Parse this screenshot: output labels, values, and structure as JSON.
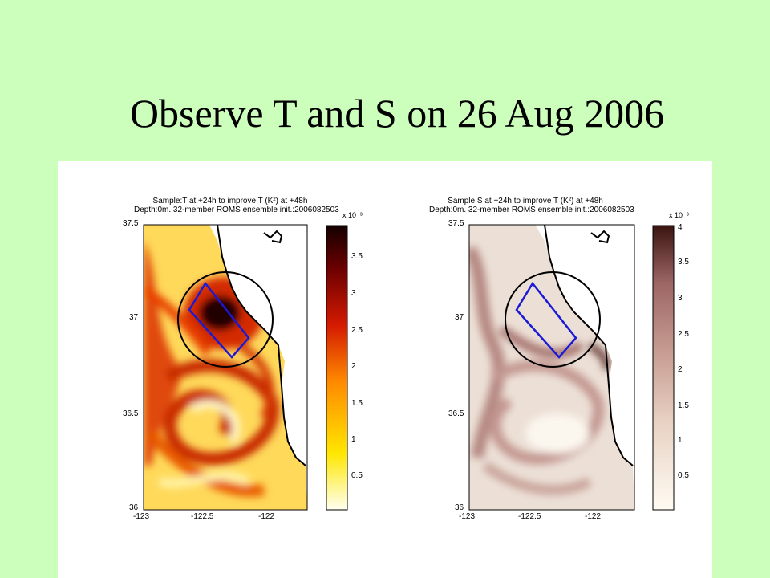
{
  "slide_title": "Observe T and S on 26 Aug 2006",
  "chart_data": [
    {
      "type": "heatmap",
      "title_line1": "Sample:T at +24h to improve T (K²) at +48h",
      "title_line2": "Depth:0m. 32-member ROMS ensemble init.:2006082503",
      "colormap": "hot (white-yellow-red-black)",
      "x_ticks": [
        "-123",
        "-122.5",
        "-122"
      ],
      "y_ticks": [
        "37.5",
        "37",
        "36.5",
        "36"
      ],
      "xlim": [
        -123,
        -121.9
      ],
      "ylim": [
        36,
        37.5
      ],
      "colorbar_ticks": [
        "0.5",
        "1",
        "1.5",
        "2",
        "2.5",
        "3",
        "3.5"
      ],
      "colorbar_range": [
        0,
        3.9
      ],
      "colorbar_exponent": "x 10⁻³",
      "colors": [
        "#fffff0",
        "#ffe600",
        "#ff8a00",
        "#d41a00",
        "#6b0000",
        "#140000"
      ],
      "annotations": [
        "circle",
        "rectangle"
      ]
    },
    {
      "type": "heatmap",
      "title_line1": "Sample:S at +24h to improve T (K²) at +48h",
      "title_line2": "Depth:0m. 32-member ROMS ensemble init.:2006082503",
      "colormap": "pink-brown",
      "x_ticks": [
        "-123",
        "-122.5",
        "-122"
      ],
      "y_ticks": [
        "37.5",
        "37",
        "36.5",
        "36"
      ],
      "xlim": [
        -123,
        -121.9
      ],
      "ylim": [
        36,
        37.5
      ],
      "colorbar_ticks": [
        "0.5",
        "1",
        "1.5",
        "2",
        "2.5",
        "3",
        "3.5",
        "4"
      ],
      "colorbar_range": [
        0,
        4.1
      ],
      "colorbar_exponent": "x 10⁻³",
      "colors": [
        "#fffbf2",
        "#e9d3c5",
        "#c89d93",
        "#9c6565",
        "#3a1410"
      ],
      "annotations": [
        "circle",
        "rectangle"
      ]
    }
  ]
}
